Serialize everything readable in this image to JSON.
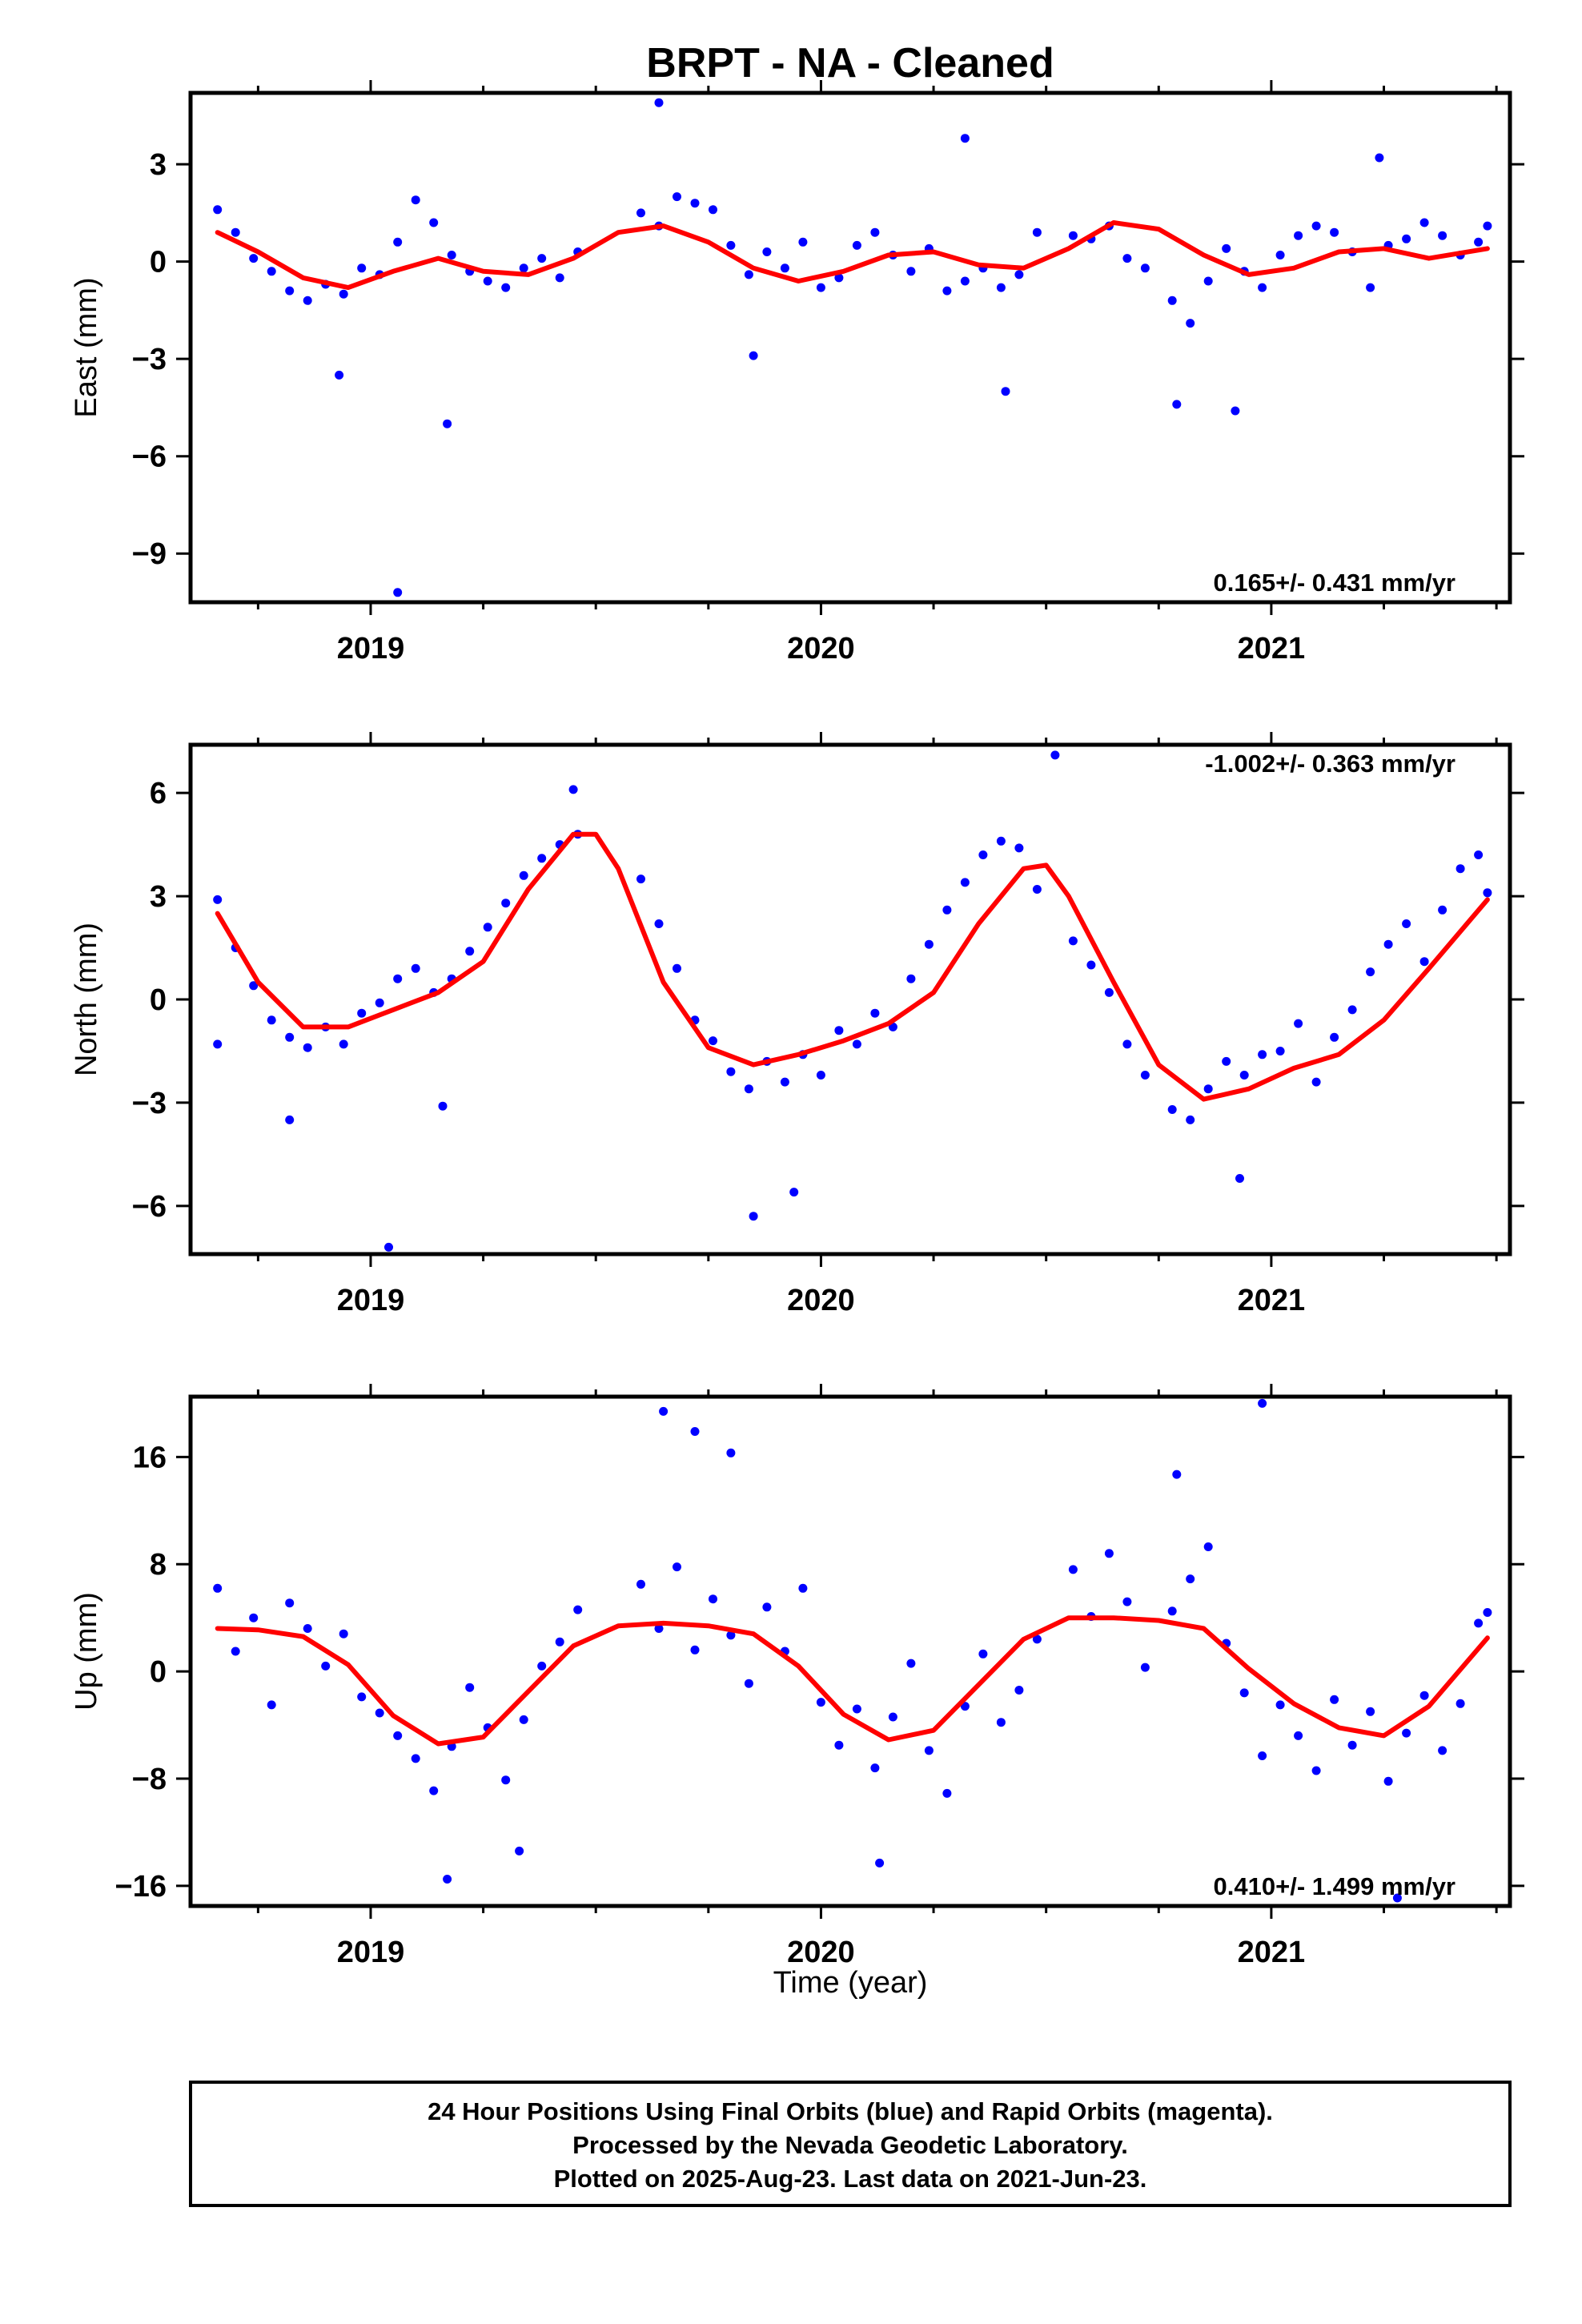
{
  "title": "BRPT  - NA - Cleaned",
  "footer": {
    "lines": [
      "24 Hour Positions Using Final Orbits (blue) and Rapid Orbits (magenta).",
      "Processed by the Nevada Geodetic Laboratory.",
      "Plotted on 2025-Aug-23. Last data on 2021-Jun-23."
    ]
  },
  "colors": {
    "data_points": "#0000ff",
    "fit_curve": "#ff0000",
    "frame": "#000000",
    "background": "#ffffff"
  },
  "chart_data": [
    {
      "type": "scatter",
      "ylabel": "East (mm)",
      "xlabel": "",
      "xlim": [
        2018.6,
        2021.53
      ],
      "ylim": [
        -10.5,
        5.2
      ],
      "xticks": [
        "2019",
        "2020",
        "2021"
      ],
      "yticks": [
        "3",
        "0",
        "−3",
        "−6",
        "−9"
      ],
      "yticks_values": [
        3,
        0,
        -3,
        -6,
        -9
      ],
      "rate_label": "0.165+/- 0.431 mm/yr",
      "rate_position": "bottom-right",
      "series": [
        {
          "style": "points",
          "x": [
            2018.66,
            2018.7,
            2018.74,
            2018.78,
            2018.82,
            2018.86,
            2018.9,
            2018.94,
            2018.98,
            2019.02,
            2019.06,
            2019.1,
            2019.14,
            2019.18,
            2019.22,
            2019.26,
            2019.3,
            2019.34,
            2019.38,
            2019.42,
            2019.46,
            2019.6,
            2019.64,
            2019.68,
            2019.72,
            2019.76,
            2019.8,
            2019.84,
            2019.88,
            2019.92,
            2019.96,
            2020.0,
            2020.04,
            2020.08,
            2020.12,
            2020.16,
            2020.2,
            2020.24,
            2020.28,
            2020.32,
            2020.36,
            2020.4,
            2020.44,
            2020.48,
            2020.56,
            2020.6,
            2020.64,
            2020.68,
            2020.72,
            2020.78,
            2020.82,
            2020.86,
            2020.9,
            2020.94,
            2020.98,
            2021.02,
            2021.06,
            2021.1,
            2021.14,
            2021.18,
            2021.22,
            2021.26,
            2021.3,
            2021.34,
            2021.38,
            2021.42,
            2021.46,
            2021.48
          ],
          "y": [
            1.6,
            0.9,
            0.1,
            -0.3,
            -0.9,
            -1.2,
            -0.7,
            -1.0,
            -0.2,
            -0.4,
            0.6,
            1.9,
            1.2,
            0.2,
            -0.3,
            -0.6,
            -0.8,
            -0.2,
            0.1,
            -0.5,
            0.3,
            1.5,
            1.1,
            2.0,
            1.8,
            1.6,
            0.5,
            -0.4,
            0.3,
            -0.2,
            0.6,
            -0.8,
            -0.5,
            0.5,
            0.9,
            0.2,
            -0.3,
            0.4,
            -0.9,
            -0.6,
            -0.2,
            -0.8,
            -0.4,
            0.9,
            0.8,
            0.7,
            1.1,
            0.1,
            -0.2,
            -1.2,
            -1.9,
            -0.6,
            0.4,
            -0.3,
            -0.8,
            0.2,
            0.8,
            1.1,
            0.9,
            0.3,
            -0.8,
            0.5,
            0.7,
            1.2,
            0.8,
            0.2,
            0.6,
            1.1
          ]
        },
        {
          "style": "points",
          "name": "",
          "x": [
            2018.93,
            2019.06,
            2019.17,
            2019.64,
            2019.85,
            2020.32,
            2020.41,
            2020.79,
            2020.92,
            2021.24
          ],
          "y": [
            -3.5,
            -10.2,
            -5.0,
            4.9,
            -2.9,
            3.8,
            -4.0,
            -4.4,
            -4.6,
            3.2
          ]
        },
        {
          "style": "curve",
          "x": [
            2018.66,
            2018.75,
            2018.85,
            2018.95,
            2019.05,
            2019.15,
            2019.25,
            2019.35,
            2019.45,
            2019.55,
            2019.65,
            2019.75,
            2019.85,
            2019.95,
            2020.05,
            2020.15,
            2020.25,
            2020.35,
            2020.45,
            2020.55,
            2020.65,
            2020.75,
            2020.85,
            2020.95,
            2021.05,
            2021.15,
            2021.25,
            2021.35,
            2021.48
          ],
          "y": [
            0.9,
            0.3,
            -0.5,
            -0.8,
            -0.3,
            0.1,
            -0.3,
            -0.4,
            0.1,
            0.9,
            1.1,
            0.6,
            -0.2,
            -0.6,
            -0.3,
            0.2,
            0.3,
            -0.1,
            -0.2,
            0.4,
            1.2,
            1.0,
            0.2,
            -0.4,
            -0.2,
            0.3,
            0.4,
            0.1,
            0.4
          ]
        }
      ]
    },
    {
      "type": "scatter",
      "ylabel": "North (mm)",
      "xlabel": "",
      "xlim": [
        2018.6,
        2021.53
      ],
      "ylim": [
        -7.4,
        7.4
      ],
      "xticks": [
        "2019",
        "2020",
        "2021"
      ],
      "yticks": [
        "6",
        "3",
        "0",
        "−3",
        "−6"
      ],
      "yticks_values": [
        6,
        3,
        0,
        -3,
        -6
      ],
      "rate_label": "-1.002+/- 0.363 mm/yr",
      "rate_position": "top-right",
      "series": [
        {
          "style": "points",
          "x": [
            2018.66,
            2018.7,
            2018.74,
            2018.78,
            2018.82,
            2018.86,
            2018.9,
            2018.94,
            2018.98,
            2019.02,
            2019.06,
            2019.1,
            2019.14,
            2019.18,
            2019.22,
            2019.26,
            2019.3,
            2019.34,
            2019.38,
            2019.42,
            2019.46,
            2019.6,
            2019.64,
            2019.68,
            2019.72,
            2019.76,
            2019.8,
            2019.84,
            2019.88,
            2019.92,
            2019.96,
            2020.0,
            2020.04,
            2020.08,
            2020.12,
            2020.16,
            2020.2,
            2020.24,
            2020.28,
            2020.32,
            2020.36,
            2020.4,
            2020.44,
            2020.48,
            2020.56,
            2020.6,
            2020.64,
            2020.68,
            2020.72,
            2020.78,
            2020.82,
            2020.86,
            2020.9,
            2020.94,
            2020.98,
            2021.02,
            2021.06,
            2021.1,
            2021.14,
            2021.18,
            2021.22,
            2021.26,
            2021.3,
            2021.34,
            2021.38,
            2021.42,
            2021.46,
            2021.48
          ],
          "y": [
            2.9,
            1.5,
            0.4,
            -0.6,
            -1.1,
            -1.4,
            -0.8,
            -1.3,
            -0.4,
            -0.1,
            0.6,
            0.9,
            0.2,
            0.6,
            1.4,
            2.1,
            2.8,
            3.6,
            4.1,
            4.5,
            4.8,
            3.5,
            2.2,
            0.9,
            -0.6,
            -1.2,
            -2.1,
            -2.6,
            -1.8,
            -2.4,
            -1.6,
            -2.2,
            -0.9,
            -1.3,
            -0.4,
            -0.8,
            0.6,
            1.6,
            2.6,
            3.4,
            4.2,
            4.6,
            4.4,
            3.2,
            1.7,
            1.0,
            0.2,
            -1.3,
            -2.2,
            -3.2,
            -3.5,
            -2.6,
            -1.8,
            -2.2,
            -1.6,
            -1.5,
            -0.7,
            -2.4,
            -1.1,
            -0.3,
            0.8,
            1.6,
            2.2,
            1.1,
            2.6,
            3.8,
            4.2,
            3.1
          ]
        },
        {
          "style": "points",
          "x": [
            2019.04,
            2019.16,
            2019.85,
            2019.94,
            2020.52,
            2019.45,
            2020.93,
            2018.82,
            2018.66
          ],
          "y": [
            -7.2,
            -3.1,
            -6.3,
            -5.6,
            7.1,
            6.1,
            -5.2,
            -3.5,
            -1.3
          ]
        },
        {
          "style": "curve",
          "x": [
            2018.66,
            2018.75,
            2018.85,
            2018.95,
            2019.05,
            2019.15,
            2019.25,
            2019.35,
            2019.45,
            2019.5,
            2019.55,
            2019.65,
            2019.75,
            2019.85,
            2019.95,
            2020.05,
            2020.15,
            2020.25,
            2020.35,
            2020.45,
            2020.5,
            2020.55,
            2020.65,
            2020.75,
            2020.85,
            2020.95,
            2021.05,
            2021.15,
            2021.25,
            2021.35,
            2021.48
          ],
          "y": [
            2.5,
            0.5,
            -0.8,
            -0.8,
            -0.3,
            0.2,
            1.1,
            3.2,
            4.8,
            4.8,
            3.8,
            0.5,
            -1.4,
            -1.9,
            -1.6,
            -1.2,
            -0.7,
            0.2,
            2.2,
            3.8,
            3.9,
            3.0,
            0.5,
            -1.9,
            -2.9,
            -2.6,
            -2.0,
            -1.6,
            -0.6,
            0.9,
            2.9
          ]
        }
      ]
    },
    {
      "type": "scatter",
      "ylabel": "Up (mm)",
      "xlabel": "Time (year)",
      "xlim": [
        2018.6,
        2021.53
      ],
      "ylim": [
        -17.5,
        20.5
      ],
      "xticks": [
        "2019",
        "2020",
        "2021"
      ],
      "yticks": [
        "16",
        "8",
        "0",
        "−8",
        "−16"
      ],
      "yticks_values": [
        16,
        8,
        0,
        -8,
        -16
      ],
      "rate_label": "0.410+/- 1.499 mm/yr",
      "rate_position": "bottom-right",
      "series": [
        {
          "style": "points",
          "x": [
            2018.66,
            2018.7,
            2018.74,
            2018.78,
            2018.82,
            2018.86,
            2018.9,
            2018.94,
            2018.98,
            2019.02,
            2019.06,
            2019.1,
            2019.14,
            2019.18,
            2019.22,
            2019.26,
            2019.3,
            2019.34,
            2019.38,
            2019.42,
            2019.46,
            2019.6,
            2019.64,
            2019.68,
            2019.72,
            2019.76,
            2019.8,
            2019.84,
            2019.88,
            2019.92,
            2019.96,
            2020.0,
            2020.04,
            2020.08,
            2020.12,
            2020.16,
            2020.2,
            2020.24,
            2020.28,
            2020.32,
            2020.36,
            2020.4,
            2020.44,
            2020.48,
            2020.56,
            2020.6,
            2020.64,
            2020.68,
            2020.72,
            2020.78,
            2020.82,
            2020.86,
            2020.9,
            2020.94,
            2020.98,
            2021.02,
            2021.06,
            2021.1,
            2021.14,
            2021.18,
            2021.22,
            2021.26,
            2021.3,
            2021.34,
            2021.38,
            2021.42,
            2021.46,
            2021.48
          ],
          "y": [
            6.2,
            1.5,
            4.0,
            -2.5,
            5.1,
            3.2,
            0.4,
            2.8,
            -1.9,
            -3.1,
            -4.8,
            -6.5,
            -8.9,
            -5.6,
            -1.2,
            -4.2,
            -8.1,
            -3.6,
            0.4,
            2.2,
            4.6,
            6.5,
            3.2,
            7.8,
            1.6,
            5.4,
            2.7,
            -0.9,
            4.8,
            1.5,
            6.2,
            -2.3,
            -5.5,
            -2.8,
            -7.2,
            -3.4,
            0.6,
            -5.9,
            -9.1,
            -2.6,
            1.3,
            -3.8,
            -1.4,
            2.4,
            7.6,
            4.1,
            8.8,
            5.2,
            0.3,
            4.5,
            6.9,
            9.3,
            2.1,
            -1.6,
            -6.3,
            -2.5,
            -4.8,
            -7.4,
            -2.1,
            -5.5,
            -3.0,
            -8.2,
            -4.6,
            -1.8,
            -5.9,
            -2.4,
            3.6,
            4.4
          ]
        },
        {
          "style": "points",
          "x": [
            2019.17,
            2019.65,
            2019.72,
            2019.8,
            2020.13,
            2020.98,
            2021.28,
            2019.33,
            2020.79
          ],
          "y": [
            -15.5,
            19.4,
            17.9,
            16.3,
            -14.3,
            20.0,
            -16.9,
            -13.4,
            14.7
          ]
        },
        {
          "style": "curve",
          "x": [
            2018.66,
            2018.75,
            2018.85,
            2018.95,
            2019.05,
            2019.15,
            2019.25,
            2019.35,
            2019.45,
            2019.55,
            2019.65,
            2019.75,
            2019.85,
            2019.95,
            2020.05,
            2020.15,
            2020.25,
            2020.35,
            2020.45,
            2020.55,
            2020.65,
            2020.75,
            2020.85,
            2020.95,
            2021.05,
            2021.15,
            2021.25,
            2021.35,
            2021.48
          ],
          "y": [
            3.2,
            3.1,
            2.6,
            0.5,
            -3.3,
            -5.4,
            -4.9,
            -1.5,
            1.9,
            3.4,
            3.6,
            3.4,
            2.8,
            0.4,
            -3.2,
            -5.1,
            -4.4,
            -1.0,
            2.4,
            4.0,
            4.0,
            3.8,
            3.2,
            0.2,
            -2.4,
            -4.2,
            -4.8,
            -2.6,
            2.5
          ]
        }
      ]
    }
  ]
}
